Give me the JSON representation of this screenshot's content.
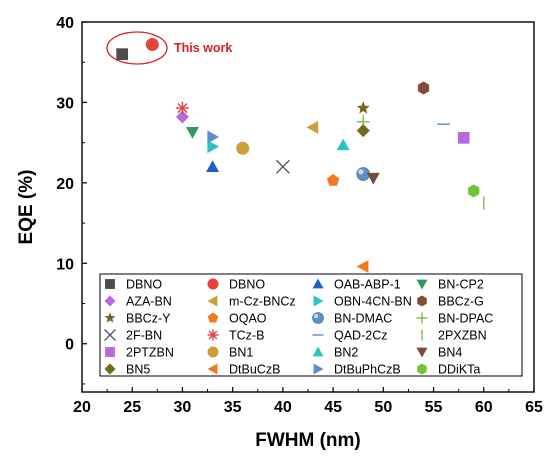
{
  "chart_data": {
    "type": "scatter",
    "xlabel": "FWHM (nm)",
    "ylabel": "EQE (%)",
    "xlim": [
      20,
      65
    ],
    "ylim": [
      -6,
      40
    ],
    "xticks": [
      "20",
      "25",
      "30",
      "35",
      "40",
      "45",
      "50",
      "55",
      "60",
      "65"
    ],
    "yticks": [
      "0",
      "10",
      "20",
      "30",
      "40"
    ],
    "grid": false,
    "legend_position": "bottom",
    "annotation": {
      "text": "This work",
      "color": "#e31a1c",
      "x": 27,
      "y": 37
    },
    "series": [
      {
        "name": "DBNO",
        "marker": "square",
        "color": "#4d4d4d",
        "points": [
          [
            24,
            36
          ]
        ]
      },
      {
        "name": "DBNO",
        "marker": "circle",
        "color": "#e8423f",
        "points": [
          [
            27,
            37.2
          ]
        ]
      },
      {
        "name": "OAB-ABP-1",
        "marker": "triangle-up",
        "color": "#1f5fc4",
        "points": [
          [
            33,
            22
          ]
        ]
      },
      {
        "name": "BN-CP2",
        "marker": "triangle-down",
        "color": "#2e9a5e",
        "points": [
          [
            31,
            26.3
          ]
        ]
      },
      {
        "name": "AZA-BN",
        "marker": "diamond",
        "color": "#b46be0",
        "points": [
          [
            30,
            28.2
          ]
        ]
      },
      {
        "name": "m-Cz-BNCz",
        "marker": "triangle-left",
        "color": "#c8a03a",
        "points": [
          [
            43,
            26.9
          ]
        ]
      },
      {
        "name": "OBN-4CN-BN",
        "marker": "triangle-right",
        "color": "#2cc3c7",
        "points": [
          [
            33,
            24.5
          ]
        ]
      },
      {
        "name": "BBCz-G",
        "marker": "hexagon",
        "color": "#8a4a3a",
        "points": [
          [
            54,
            31.8
          ]
        ]
      },
      {
        "name": "BBCz-Y",
        "marker": "star",
        "color": "#6f6a1e",
        "points": [
          [
            48,
            29.3
          ]
        ]
      },
      {
        "name": "OQAO",
        "marker": "pentagon",
        "color": "#f07820",
        "points": [
          [
            45,
            20.3
          ]
        ]
      },
      {
        "name": "BN-DMAC",
        "marker": "sphere",
        "color": "#5b8fc7",
        "points": [
          [
            48,
            21.1
          ]
        ]
      },
      {
        "name": "BN-DPAC",
        "marker": "plus",
        "color": "#8ab84a",
        "points": [
          [
            48,
            27.6
          ]
        ]
      },
      {
        "name": "2F-BN",
        "marker": "x",
        "color": "#5a5a5a",
        "points": [
          [
            40,
            22
          ]
        ]
      },
      {
        "name": "TCz-B",
        "marker": "asterisk",
        "color": "#e04040",
        "points": [
          [
            30,
            29.3
          ]
        ]
      },
      {
        "name": "QAD-2Cz",
        "marker": "hline",
        "color": "#5b8fc7",
        "points": [
          [
            56,
            27.3
          ]
        ]
      },
      {
        "name": "2PXZBN",
        "marker": "vline",
        "color": "#8ab84a",
        "points": [
          [
            60,
            17.5
          ]
        ]
      },
      {
        "name": "2PTZBN",
        "marker": "square",
        "color": "#b46be0",
        "points": [
          [
            58,
            25.6
          ]
        ]
      },
      {
        "name": "BN1",
        "marker": "circle",
        "color": "#c8a03a",
        "points": [
          [
            36,
            24.3
          ]
        ]
      },
      {
        "name": "BN2",
        "marker": "triangle-up",
        "color": "#2cc3c7",
        "points": [
          [
            46,
            24.7
          ]
        ]
      },
      {
        "name": "BN4",
        "marker": "triangle-down",
        "color": "#7a4a3a",
        "points": [
          [
            49,
            20.6
          ]
        ]
      },
      {
        "name": "BN5",
        "marker": "diamond",
        "color": "#6f6a1e",
        "points": [
          [
            48,
            26.5
          ]
        ]
      },
      {
        "name": "DtBuCzB",
        "marker": "triangle-left",
        "color": "#f07820",
        "points": [
          [
            48,
            9.6
          ]
        ]
      },
      {
        "name": "DtBuPhCzB",
        "marker": "triangle-right",
        "color": "#5b8fc7",
        "points": [
          [
            33,
            25.7
          ]
        ]
      },
      {
        "name": "DDiKTa",
        "marker": "hexagon",
        "color": "#77c232",
        "points": [
          [
            59,
            19
          ]
        ]
      }
    ]
  }
}
